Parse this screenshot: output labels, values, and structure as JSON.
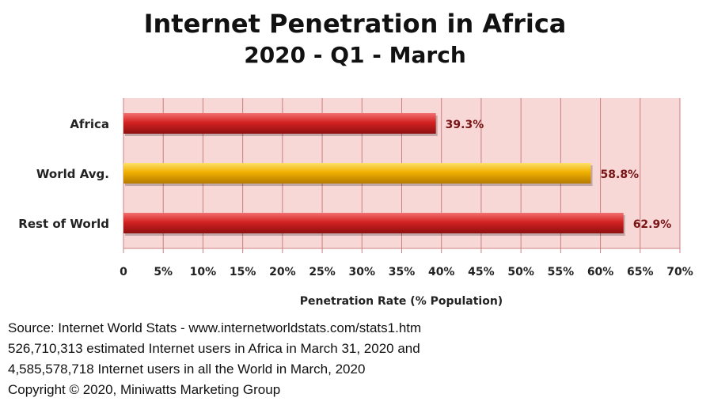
{
  "chart_data": {
    "type": "bar",
    "orientation": "horizontal",
    "title": "Internet Penetration in Africa",
    "subtitle": "2020 - Q1 - March",
    "categories": [
      "Africa",
      "World Avg.",
      "Rest of World"
    ],
    "values": [
      39.3,
      58.8,
      62.9
    ],
    "value_labels": [
      "39.3%",
      "58.8%",
      "62.9%"
    ],
    "bar_colors": [
      "#d42222",
      "#f0b000",
      "#d42222"
    ],
    "xlabel": "Penetration Rate (% Population)",
    "ylabel": "",
    "xlim": [
      0,
      70
    ],
    "xticks": [
      0,
      5,
      10,
      15,
      20,
      25,
      30,
      35,
      40,
      45,
      50,
      55,
      60,
      65,
      70
    ],
    "xtick_labels": [
      "0",
      "5%",
      "10%",
      "15%",
      "20%",
      "25%",
      "30%",
      "35%",
      "40%",
      "45%",
      "50%",
      "55%",
      "60%",
      "65%",
      "70%"
    ],
    "grid": true,
    "plot_background": "#f8d7d7",
    "grid_color": "#c98080"
  },
  "source_lines": [
    "Source: Internet World Stats  -  www.internetworldstats.com/stats1.htm",
    "526,710,313 estimated Internet users in Africa in March 31, 2020 and",
    "4,585,578,718 Internet users in all the World in March, 2020",
    "Copyright © 2020, Miniwatts Marketing Group"
  ]
}
